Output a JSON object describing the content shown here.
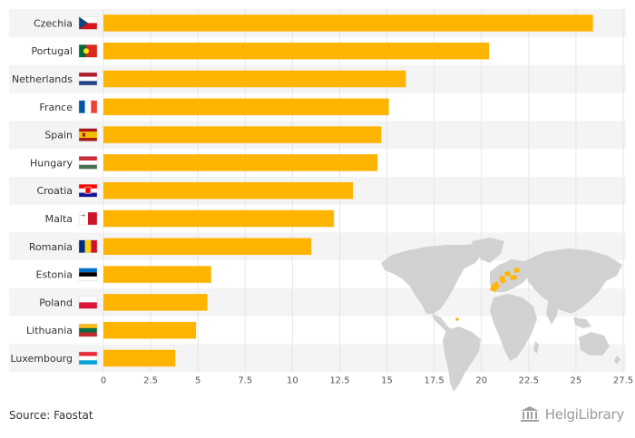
{
  "chart_data": {
    "type": "bar",
    "orientation": "horizontal",
    "categories": [
      "Czechia",
      "Portugal",
      "Netherlands",
      "France",
      "Spain",
      "Hungary",
      "Croatia",
      "Malta",
      "Romania",
      "Estonia",
      "Poland",
      "Lithuania",
      "Luxembourg"
    ],
    "values": [
      25.9,
      20.4,
      16.0,
      15.1,
      14.7,
      14.5,
      13.2,
      12.2,
      11.0,
      5.7,
      5.5,
      4.9,
      3.8
    ],
    "xlim": [
      0,
      27.5
    ],
    "xticks": [
      "0",
      "2.5",
      "5",
      "7.5",
      "10",
      "12.5",
      "15",
      "17.5",
      "20",
      "22.5",
      "25",
      "27.5"
    ],
    "title": "",
    "xlabel": "",
    "ylabel": "",
    "bar_color": "#FFB400",
    "stripe_color": "#F4F4F4",
    "grid": true,
    "flags": [
      "cz-flag-icon",
      "pt-flag-icon",
      "nl-flag-icon",
      "fr-flag-icon",
      "es-flag-icon",
      "hu-flag-icon",
      "hr-flag-icon",
      "mt-flag-icon",
      "ro-flag-icon",
      "ee-flag-icon",
      "pl-flag-icon",
      "lt-flag-icon",
      "lu-flag-icon"
    ]
  },
  "map": {
    "icon": "world-map-icon",
    "land_color": "#D0D0D0",
    "highlight_color": "#FFB400"
  },
  "footer": {
    "source": "Source: Faostat",
    "logo_brand": "HelgiLibrary",
    "logo_icon": "library-building-icon"
  }
}
